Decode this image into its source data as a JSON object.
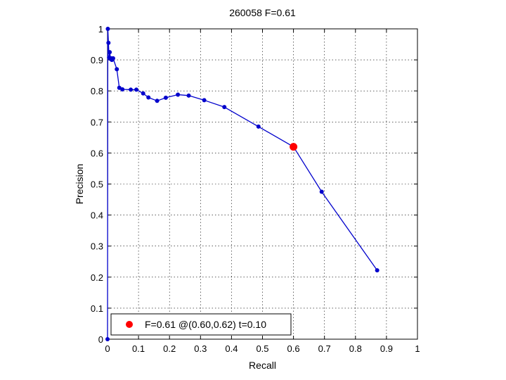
{
  "chart_data": {
    "type": "line",
    "title": "260058 F=0.61",
    "xlabel": "Recall",
    "ylabel": "Precision",
    "xlim": [
      0,
      1
    ],
    "ylim": [
      0,
      1
    ],
    "xticks": [
      "0",
      "0.1",
      "0.2",
      "0.3",
      "0.4",
      "0.5",
      "0.6",
      "0.7",
      "0.8",
      "0.9",
      "1"
    ],
    "yticks": [
      "0",
      "0.1",
      "0.2",
      "0.3",
      "0.4",
      "0.5",
      "0.6",
      "0.7",
      "0.8",
      "0.9",
      "1"
    ],
    "grid": true,
    "legend_position": "bottom-left",
    "series": [
      {
        "color": "#0000cc",
        "x": [
          0.0,
          0.001,
          0.003,
          0.005,
          0.007,
          0.01,
          0.012,
          0.014,
          0.018,
          0.03,
          0.038,
          0.048,
          0.075,
          0.093,
          0.115,
          0.132,
          0.16,
          0.188,
          0.227,
          0.262,
          0.312,
          0.377,
          0.487,
          0.6,
          0.691,
          0.87
        ],
        "y": [
          0.0,
          1.0,
          0.955,
          0.908,
          0.925,
          0.903,
          0.905,
          0.9,
          0.905,
          0.87,
          0.81,
          0.805,
          0.804,
          0.804,
          0.792,
          0.779,
          0.768,
          0.778,
          0.788,
          0.785,
          0.77,
          0.748,
          0.685,
          0.62,
          0.475,
          0.222
        ]
      }
    ],
    "highlight_point": {
      "x": 0.6,
      "y": 0.62,
      "color": "#ff0000"
    },
    "legend": {
      "label": "F=0.61 @(0.60,0.62) t=0.10"
    }
  }
}
